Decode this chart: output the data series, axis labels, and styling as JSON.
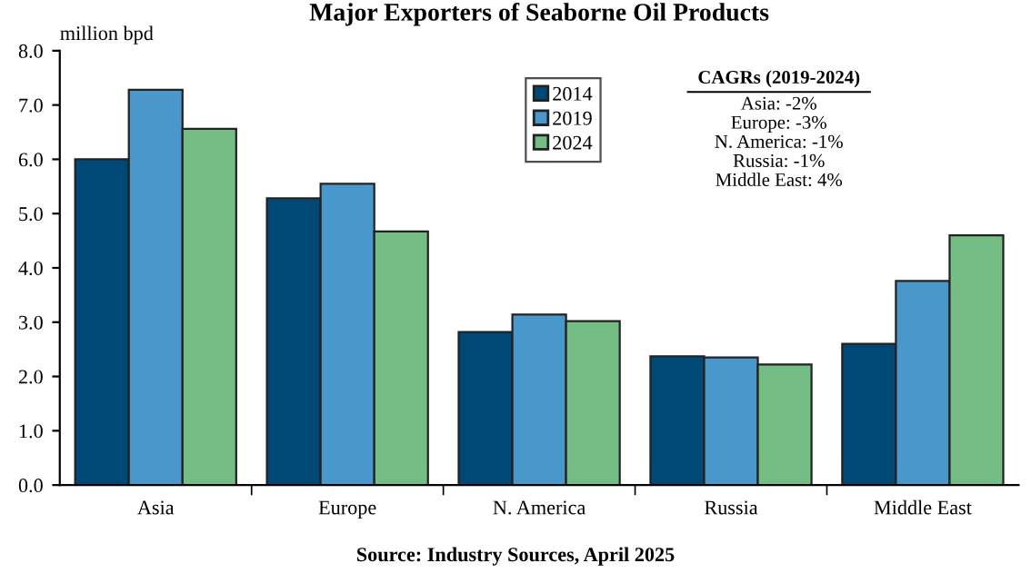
{
  "chart_data": {
    "type": "bar",
    "title": "Major Exporters of Seaborne Oil Products",
    "ylabel": "million bpd",
    "categories": [
      "Asia",
      "Europe",
      "N. America",
      "Russia",
      "Middle East"
    ],
    "series": [
      {
        "name": "2014",
        "color": "#004976",
        "values": [
          6.0,
          5.28,
          2.82,
          2.37,
          2.6
        ]
      },
      {
        "name": "2019",
        "color": "#4a98cb",
        "values": [
          7.28,
          5.55,
          3.14,
          2.35,
          3.76
        ]
      },
      {
        "name": "2024",
        "color": "#74be86",
        "values": [
          6.56,
          4.67,
          3.02,
          2.22,
          4.6
        ]
      }
    ],
    "ylim": [
      0,
      8
    ],
    "yticks": [
      {
        "value": 0,
        "label": "0.0"
      },
      {
        "value": 1,
        "label": "1.0"
      },
      {
        "value": 2,
        "label": "2.0"
      },
      {
        "value": 3,
        "label": "3.0"
      },
      {
        "value": 4,
        "label": "4.0"
      },
      {
        "value": 5,
        "label": "5.0"
      },
      {
        "value": 6,
        "label": "6.0"
      },
      {
        "value": 7,
        "label": "7.0"
      },
      {
        "value": 8,
        "label": "8.0"
      }
    ],
    "grid": false,
    "legend": "top",
    "annotations": [
      "CAGRs (2019-2024)",
      "Asia: -2%\nEurope: -3%\nN. America: -1%\nRussia: -1%\nMiddle East: 4%",
      "Source: Industry Sources, April 2025"
    ]
  }
}
